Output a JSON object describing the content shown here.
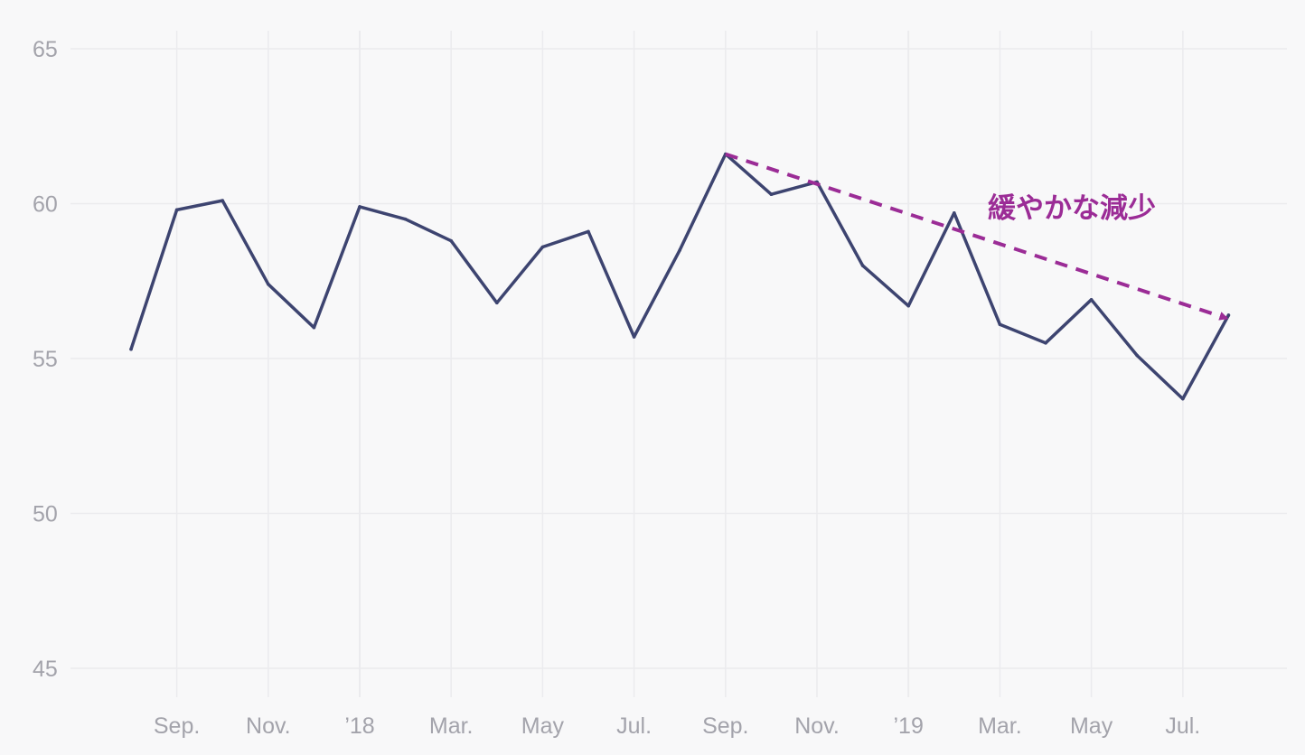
{
  "chart_data": {
    "type": "line",
    "x": [
      "2017-08",
      "2017-09",
      "2017-10",
      "2017-11",
      "2017-12",
      "2018-01",
      "2018-02",
      "2018-03",
      "2018-04",
      "2018-05",
      "2018-06",
      "2018-07",
      "2018-08",
      "2018-09",
      "2018-10",
      "2018-11",
      "2018-12",
      "2019-01",
      "2019-02",
      "2019-03",
      "2019-04",
      "2019-05",
      "2019-06",
      "2019-07",
      "2019-08"
    ],
    "series": [
      {
        "values": [
          55.3,
          59.8,
          60.1,
          57.4,
          56.0,
          59.9,
          59.5,
          58.8,
          56.8,
          58.6,
          59.1,
          55.7,
          58.5,
          61.6,
          60.3,
          60.7,
          58.0,
          56.7,
          59.7,
          56.1,
          55.5,
          56.9,
          55.1,
          53.7,
          56.4
        ]
      }
    ],
    "ylim": [
      45,
      65
    ],
    "y_ticks": [
      "45",
      "50",
      "55",
      "60",
      "65"
    ],
    "x_ticks": [
      {
        "date": "2017-09",
        "label": "Sep."
      },
      {
        "date": "2017-11",
        "label": "Nov."
      },
      {
        "date": "2018-01",
        "label": "’18"
      },
      {
        "date": "2018-03",
        "label": "Mar."
      },
      {
        "date": "2018-05",
        "label": "May"
      },
      {
        "date": "2018-07",
        "label": "Jul."
      },
      {
        "date": "2018-09",
        "label": "Sep."
      },
      {
        "date": "2018-11",
        "label": "Nov."
      },
      {
        "date": "2019-01",
        "label": "’19"
      },
      {
        "date": "2019-03",
        "label": "Mar."
      },
      {
        "date": "2019-05",
        "label": "May"
      },
      {
        "date": "2019-07",
        "label": "Jul."
      }
    ],
    "grid": true,
    "annotation": {
      "text": "緩やかな減少",
      "arrow": {
        "from": [
          "2018-09",
          61.6
        ],
        "to": [
          "2019-08",
          56.3
        ]
      }
    },
    "colors": {
      "line": "#3d4470",
      "annotation": "#9b2c96",
      "grid": "#ebebee",
      "tick_text": "#a3a3ab"
    }
  }
}
